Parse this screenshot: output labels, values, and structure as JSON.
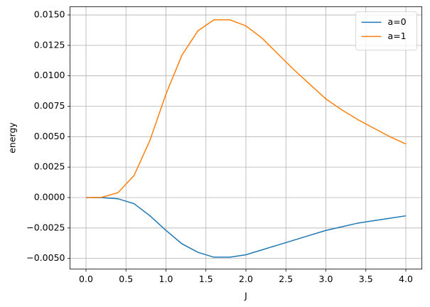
{
  "chart_data": {
    "type": "line",
    "x_label": "J",
    "y_label": "energy",
    "x": [
      0.0,
      0.2,
      0.4,
      0.6,
      0.8,
      1.0,
      1.2,
      1.4,
      1.6,
      1.8,
      2.0,
      2.2,
      2.4,
      2.6,
      2.8,
      3.0,
      3.2,
      3.4,
      3.6,
      3.8,
      4.0
    ],
    "series": [
      {
        "name": "a=0",
        "color": "#1f77b4",
        "values": [
          0,
          -1e-05,
          -0.0001,
          -0.0005,
          -0.0015,
          -0.0027,
          -0.0038,
          -0.0045,
          -0.0049,
          -0.0049,
          -0.0047,
          -0.0043,
          -0.0039,
          -0.0035,
          -0.0031,
          -0.0027,
          -0.0024,
          -0.0021,
          -0.0019,
          -0.0017,
          -0.0015
        ]
      },
      {
        "name": "a=1",
        "color": "#ff7f0e",
        "values": [
          0,
          2e-05,
          0.0004,
          0.0018,
          0.0047,
          0.0085,
          0.0117,
          0.0137,
          0.0146,
          0.0146,
          0.0141,
          0.0131,
          0.0118,
          0.0105,
          0.0093,
          0.0081,
          0.0072,
          0.0064,
          0.0057,
          0.005,
          0.0044
        ]
      }
    ],
    "xlim": [
      -0.2,
      4.2
    ],
    "ylim": [
      -0.00588,
      0.01568
    ],
    "xticks": [
      {
        "value": 0,
        "label": "0.0"
      },
      {
        "value": 0.5,
        "label": "0.5"
      },
      {
        "value": 1,
        "label": "1.0"
      },
      {
        "value": 1.5,
        "label": "1.5"
      },
      {
        "value": 2,
        "label": "2.0"
      },
      {
        "value": 2.5,
        "label": "2.5"
      },
      {
        "value": 3,
        "label": "3.0"
      },
      {
        "value": 3.5,
        "label": "3.5"
      },
      {
        "value": 4,
        "label": "4.0"
      }
    ],
    "yticks": [
      {
        "value": -0.005,
        "label": "−0.0050"
      },
      {
        "value": -0.0025,
        "label": "−0.0025"
      },
      {
        "value": 0,
        "label": "0.0000"
      },
      {
        "value": 0.0025,
        "label": "0.0025"
      },
      {
        "value": 0.005,
        "label": "0.0050"
      },
      {
        "value": 0.0075,
        "label": "0.0075"
      },
      {
        "value": 0.01,
        "label": "0.0100"
      },
      {
        "value": 0.0125,
        "label": "0.0125"
      },
      {
        "value": 0.015,
        "label": "0.0150"
      }
    ],
    "grid": true,
    "legend": "upper-right"
  }
}
